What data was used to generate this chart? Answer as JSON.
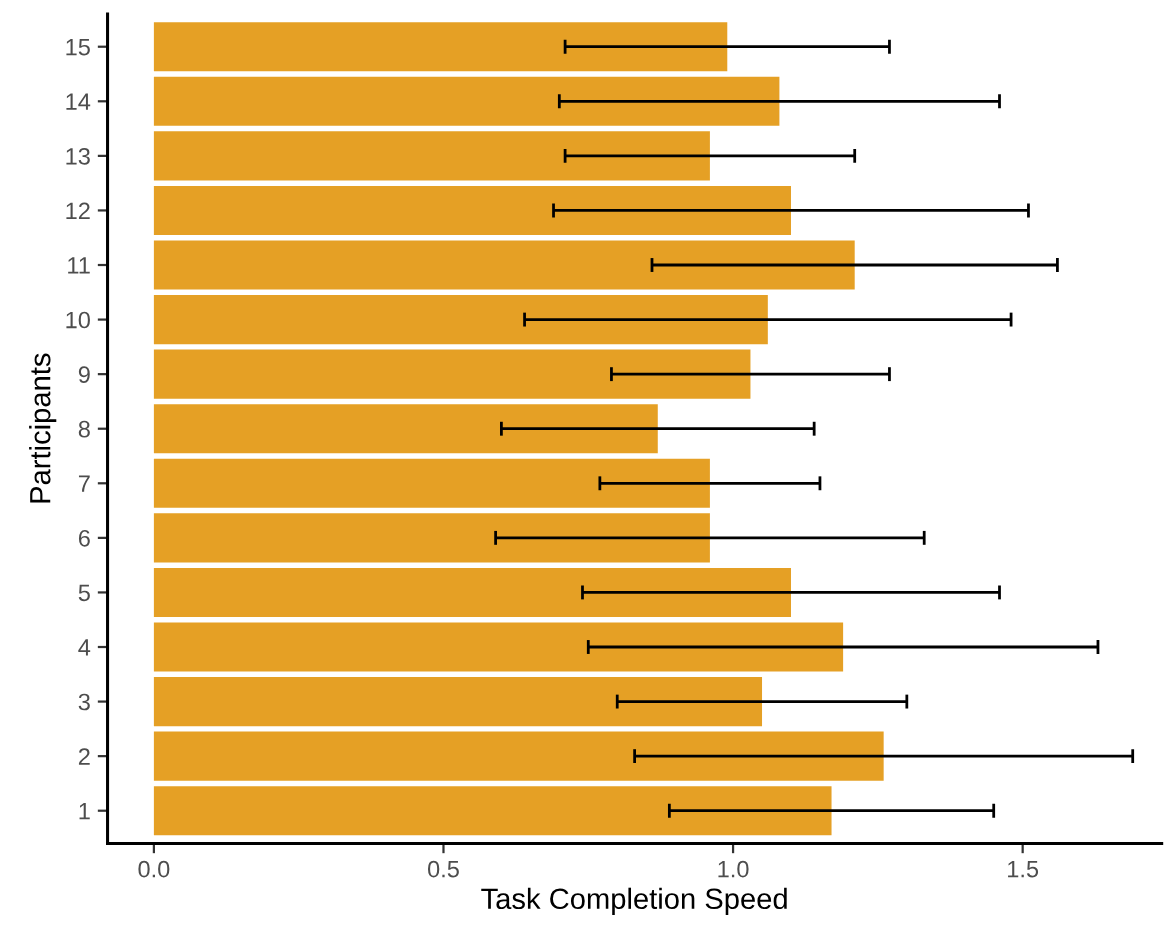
{
  "chart_data": {
    "type": "bar",
    "orientation": "horizontal",
    "xlabel": "Task Completion Speed",
    "ylabel": "Participants",
    "categories": [
      "15",
      "14",
      "13",
      "12",
      "11",
      "10",
      "9",
      "8",
      "7",
      "6",
      "5",
      "4",
      "3",
      "2",
      "1"
    ],
    "values": [
      0.99,
      1.08,
      0.96,
      1.1,
      1.21,
      1.06,
      1.03,
      0.87,
      0.96,
      0.96,
      1.1,
      1.19,
      1.05,
      1.26,
      1.17
    ],
    "errors": [
      0.28,
      0.38,
      0.25,
      0.41,
      0.35,
      0.42,
      0.24,
      0.27,
      0.19,
      0.37,
      0.36,
      0.44,
      0.25,
      0.43,
      0.28
    ],
    "color": "#e5a025",
    "xlim": [
      -0.08,
      1.74
    ],
    "xticks": [
      {
        "value": 0,
        "label": "0.0"
      },
      0.5,
      {
        "value": 1,
        "label": "1.0"
      },
      1.5
    ],
    "grid": false,
    "legend": false
  }
}
